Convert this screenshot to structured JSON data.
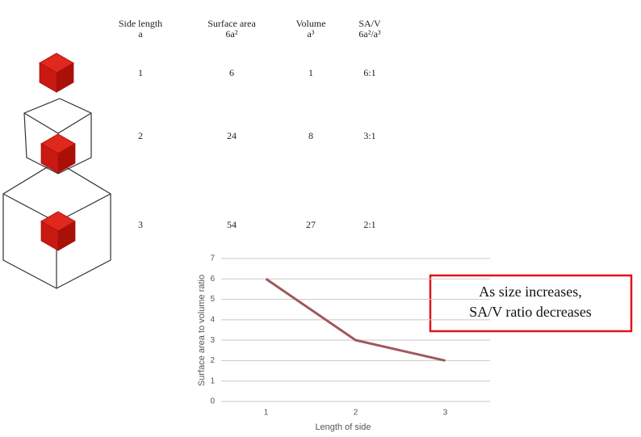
{
  "table": {
    "headers": [
      [
        "Side length",
        "a"
      ],
      [
        "Surface area",
        "6a²"
      ],
      [
        "Volume",
        "a³"
      ],
      [
        "SA/V",
        "6a²/a³"
      ]
    ],
    "rows": [
      [
        1,
        6,
        1,
        "6:1"
      ],
      [
        2,
        24,
        8,
        "3:1"
      ],
      [
        3,
        54,
        27,
        "2:1"
      ]
    ]
  },
  "chart_data": {
    "type": "line",
    "categories": [
      "1",
      "2",
      "3"
    ],
    "series": [
      {
        "name": "SA/V",
        "color": "#a0585c",
        "values": [
          6,
          3,
          2
        ]
      }
    ],
    "ylim": [
      0,
      7
    ],
    "yticks": [
      0,
      1,
      2,
      3,
      4,
      5,
      6,
      7
    ],
    "grid": true,
    "x_label": "Length of side",
    "y_label": "Surface area to volume ratio"
  },
  "callout": [
    "As size increases,",
    "SA/V ratio decreases"
  ]
}
